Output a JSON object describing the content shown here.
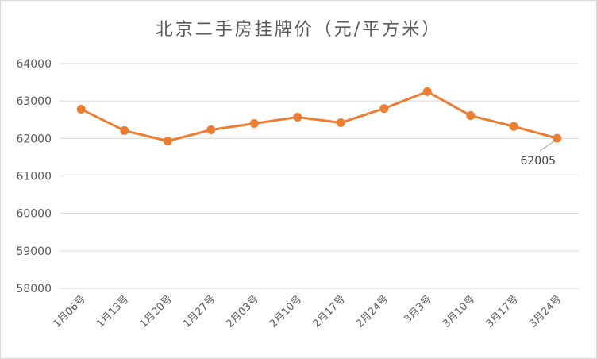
{
  "chart_data": {
    "type": "line",
    "title": "北京二手房挂牌价（元/平方米）",
    "categories": [
      "1月06号",
      "1月13号",
      "1月20号",
      "1月27号",
      "2月03号",
      "2月10号",
      "2月17号",
      "2月24号",
      "3月3号",
      "3月10号",
      "3月17号",
      "3月24号"
    ],
    "series": [
      {
        "values": [
          62780,
          62210,
          61930,
          62230,
          62400,
          62570,
          62420,
          62800,
          63250,
          62610,
          62320,
          62005
        ]
      }
    ],
    "ylim": [
      58000,
      64000
    ],
    "yticks": [
      58000,
      59000,
      60000,
      61000,
      62000,
      63000,
      64000
    ],
    "grid": true,
    "legend": "none",
    "data_labels": [
      {
        "index": 11,
        "text": "62005"
      }
    ],
    "colors": {
      "line": "#ED7D31",
      "grid": "#d9d9d9"
    }
  }
}
